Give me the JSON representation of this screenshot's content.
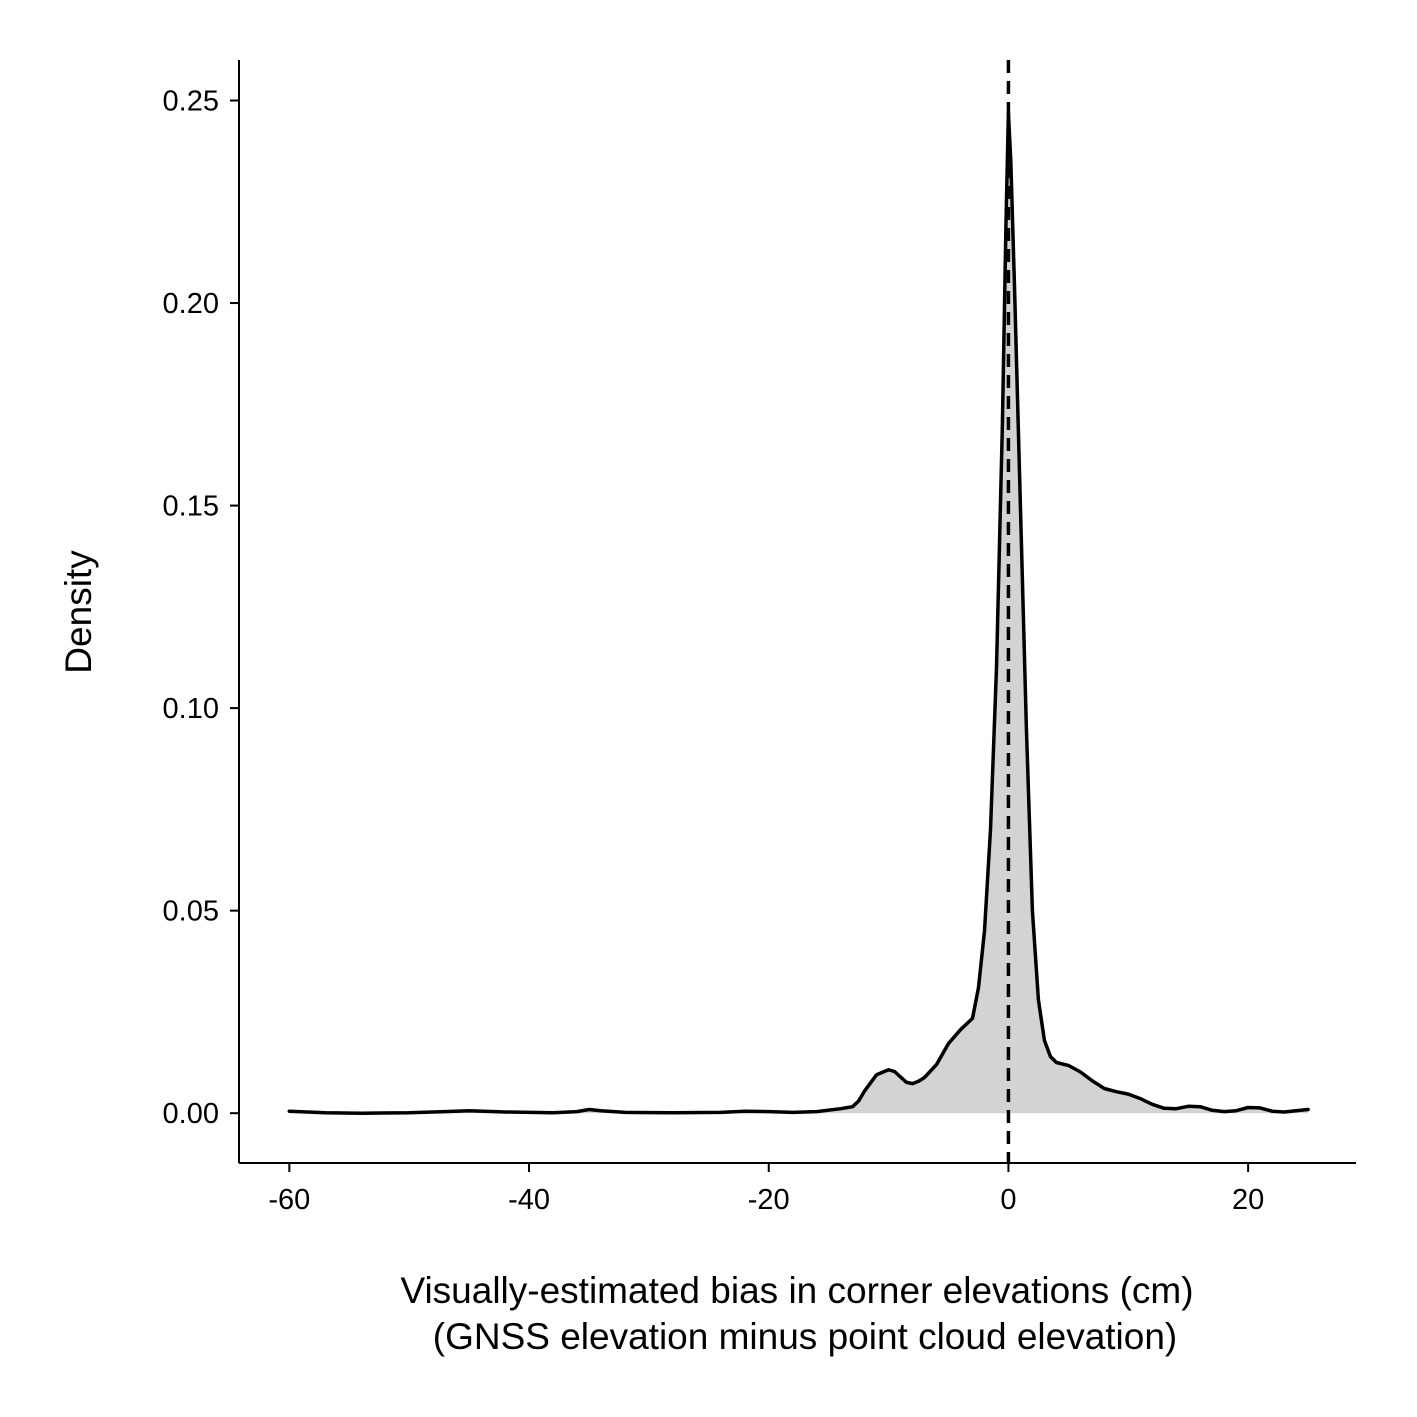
{
  "chart_data": {
    "type": "area",
    "xlabel_line1": "Visually-estimated bias in corner elevations (cm)",
    "xlabel_line2": "(GNSS elevation minus point cloud elevation)",
    "ylabel": "Density",
    "xlim": [
      -64.2,
      29
    ],
    "ylim": [
      -0.0123,
      0.26
    ],
    "x_ticks": [
      -60,
      -40,
      -20,
      0,
      20
    ],
    "x_tick_labels": [
      "-60",
      "-40",
      "-20",
      "0",
      "20"
    ],
    "y_ticks": [
      0,
      0.05,
      0.1,
      0.15,
      0.2,
      0.25
    ],
    "y_tick_labels": [
      "0.00",
      "0.05",
      "0.10",
      "0.15",
      "0.20",
      "0.25"
    ],
    "reference_line_x": 0,
    "fill_color": "#d3d3d3",
    "line_color": "#000000",
    "grid": false,
    "series": [
      {
        "x": [
          -60,
          -57,
          -54,
          -50,
          -47,
          -45,
          -42,
          -38,
          -36,
          -35,
          -34,
          -32,
          -28,
          -24,
          -22,
          -20,
          -18,
          -16,
          -14,
          -13,
          -12.5,
          -12,
          -11,
          -10,
          -9.5,
          -9,
          -8.5,
          -8,
          -7.5,
          -7,
          -6,
          -5,
          -4,
          -3,
          -2.5,
          -2,
          -1.5,
          -1,
          -0.5,
          -0.2,
          0,
          0.2,
          0.5,
          1,
          1.5,
          2,
          2.5,
          3,
          3.5,
          4,
          5,
          6,
          7,
          8,
          9,
          10,
          11,
          12,
          13,
          14,
          15,
          16,
          17,
          18,
          19,
          20,
          21,
          22,
          23,
          24,
          25
        ],
        "y": [
          0.0005,
          0.0001,
          0.0,
          0.0001,
          0.0004,
          0.0006,
          0.0003,
          0.0001,
          0.0004,
          0.0009,
          0.0006,
          0.0002,
          0.0001,
          0.0002,
          0.0005,
          0.0004,
          0.0002,
          0.0004,
          0.0011,
          0.0016,
          0.003,
          0.0055,
          0.0095,
          0.0107,
          0.0103,
          0.0089,
          0.0076,
          0.0073,
          0.0079,
          0.0088,
          0.012,
          0.0172,
          0.0206,
          0.0234,
          0.031,
          0.045,
          0.07,
          0.11,
          0.17,
          0.22,
          0.247,
          0.235,
          0.205,
          0.15,
          0.095,
          0.05,
          0.028,
          0.018,
          0.014,
          0.0125,
          0.0118,
          0.0102,
          0.008,
          0.0061,
          0.0053,
          0.0047,
          0.0036,
          0.0022,
          0.0012,
          0.0011,
          0.0017,
          0.0016,
          0.0007,
          0.0004,
          0.0006,
          0.0014,
          0.0013,
          0.0005,
          0.0003,
          0.0006,
          0.0009
        ]
      }
    ]
  }
}
